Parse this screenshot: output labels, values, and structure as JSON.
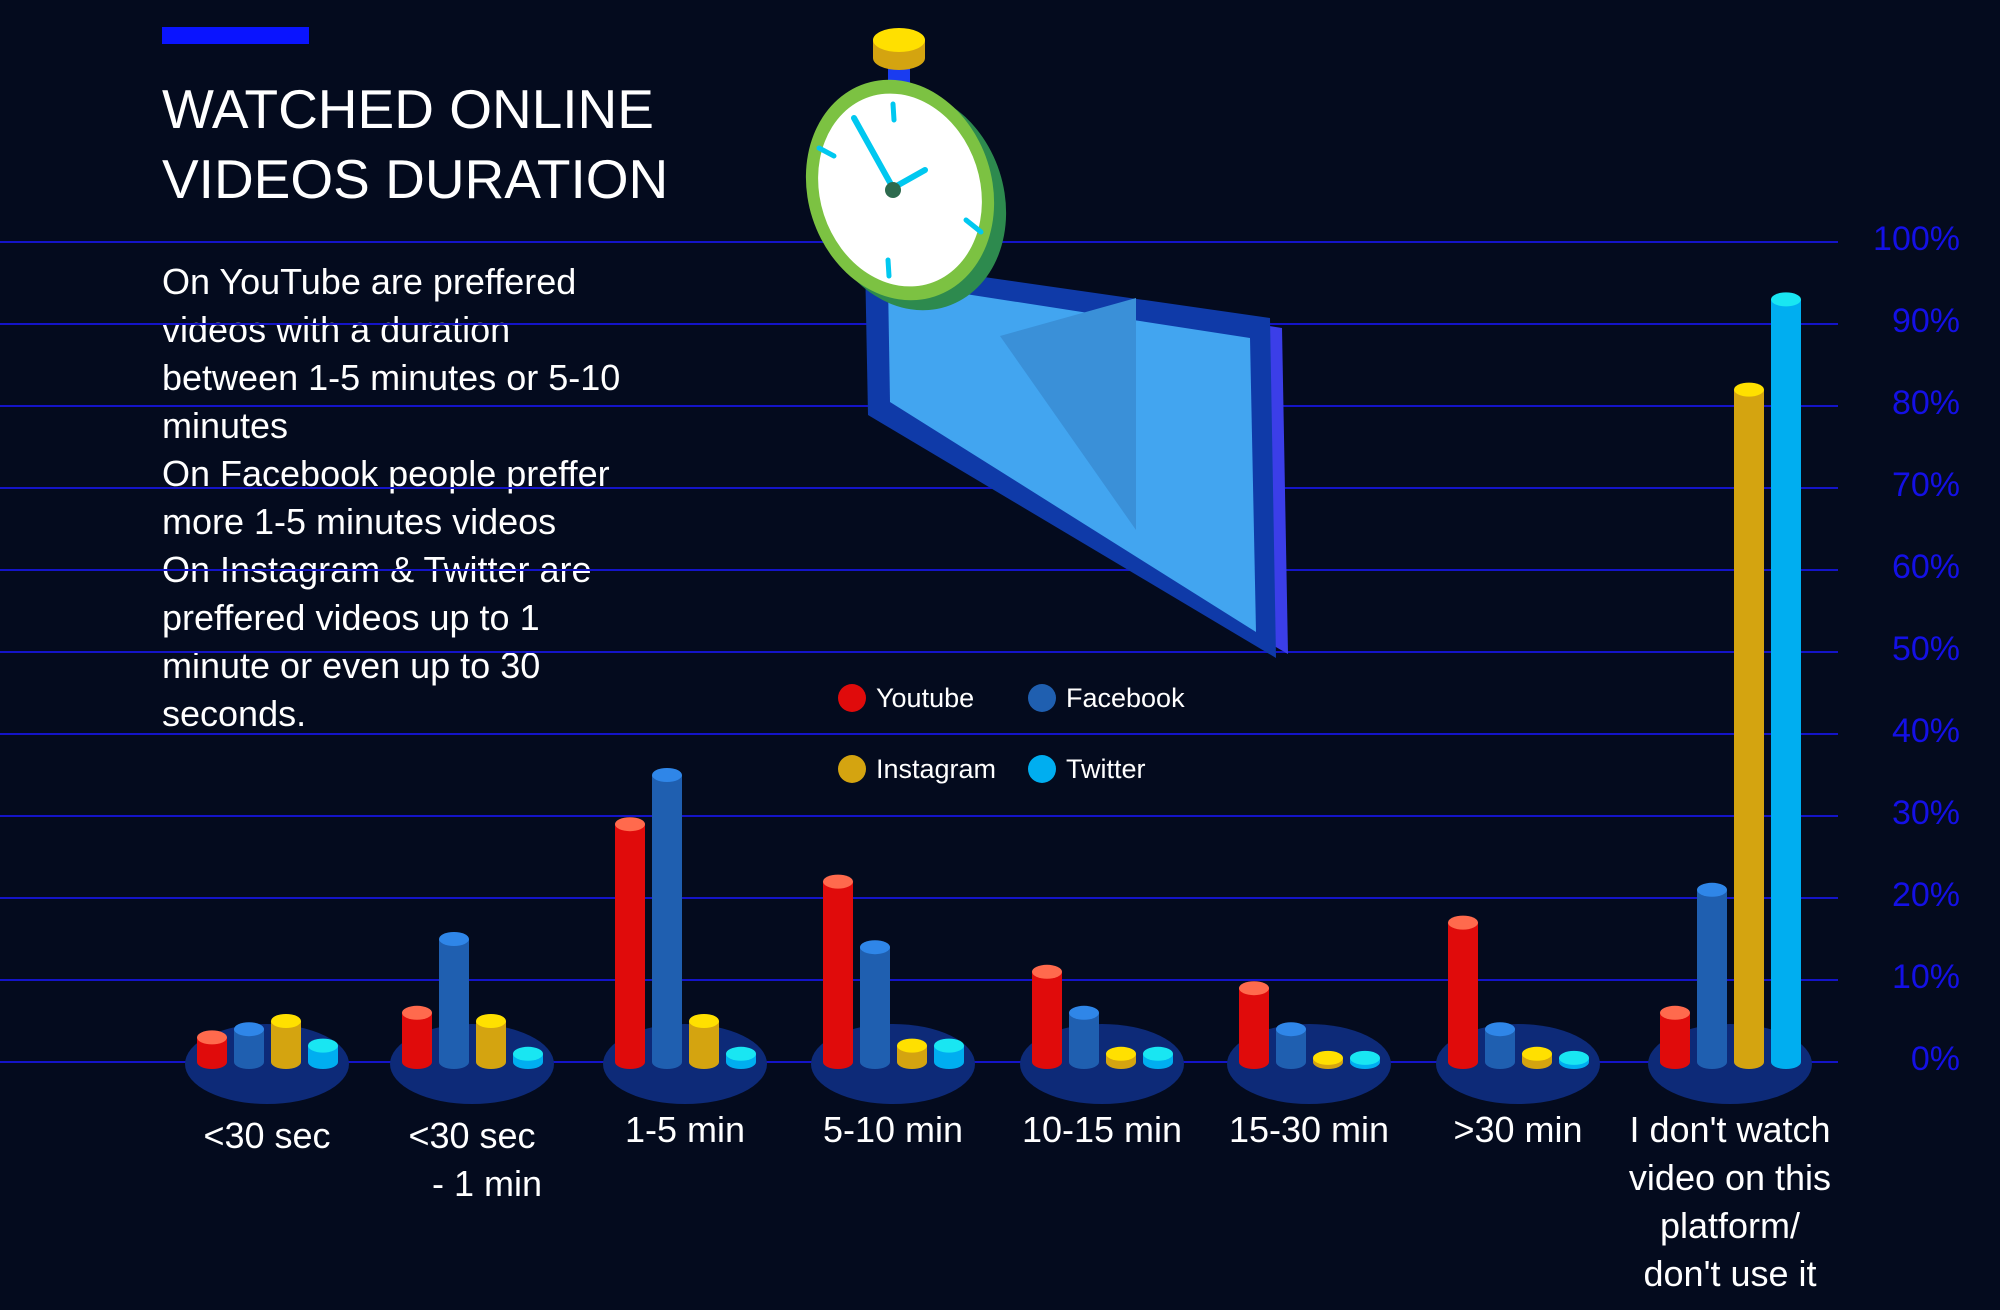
{
  "title_lines": [
    "WATCHED ONLINE",
    "VIDEOS DURATION"
  ],
  "description_lines": [
    "On YouTube are preffered",
    "videos with a duration",
    "between 1-5 minutes or 5-10",
    "minutes",
    "On Facebook people preffer",
    "more 1-5 minutes videos",
    "On Instagram & Twitter are",
    "preffered videos up to 1",
    "minute or even up to 30",
    "seconds."
  ],
  "colors": {
    "background": "#040b1e",
    "accent": "#0a14ff",
    "gridline": "#1414c8",
    "tick_text": "#1410e6",
    "platform": "#0d2a78"
  },
  "chart_data": {
    "type": "bar",
    "title": "WATCHED ONLINE VIDEOS DURATION",
    "categories": [
      "<30 sec",
      "<30 sec - 1 min",
      "1-5 min",
      "5-10 min",
      "10-15 min",
      "15-30 min",
      ">30 min",
      "I don't watch video on this platform/ don't use it"
    ],
    "category_label_lines": [
      [
        "<30 sec"
      ],
      [
        "<30 sec",
        "- 1 min"
      ],
      [
        "1-5 min"
      ],
      [
        "5-10 min"
      ],
      [
        "10-15 min"
      ],
      [
        "15-30 min"
      ],
      [
        ">30 min"
      ],
      [
        "I don't watch",
        "video on this",
        "platform/",
        "don't use it"
      ]
    ],
    "series": [
      {
        "name": "Youtube",
        "color": "#e00b0b",
        "top_color": "#ff6a4d",
        "values": [
          3,
          6,
          29,
          22,
          11,
          9,
          17,
          6
        ]
      },
      {
        "name": "Facebook",
        "color": "#1f5fb0",
        "top_color": "#2f86e8",
        "values": [
          4,
          15,
          35,
          14,
          6,
          4,
          4,
          21
        ]
      },
      {
        "name": "Instagram",
        "color": "#d4a410",
        "top_color": "#ffe000",
        "values": [
          5,
          5,
          5,
          2,
          1,
          0.5,
          1,
          82
        ]
      },
      {
        "name": "Twitter",
        "color": "#00aef0",
        "top_color": "#19e6f2",
        "values": [
          2,
          1,
          1,
          2,
          1,
          0.5,
          0.5,
          93
        ]
      }
    ],
    "yticks": [
      "0%",
      "10%",
      "20%",
      "30%",
      "40%",
      "50%",
      "60%",
      "70%",
      "80%",
      "90%",
      "100%"
    ],
    "ylim": [
      0,
      100
    ],
    "grid": true,
    "legend_position": "center"
  }
}
